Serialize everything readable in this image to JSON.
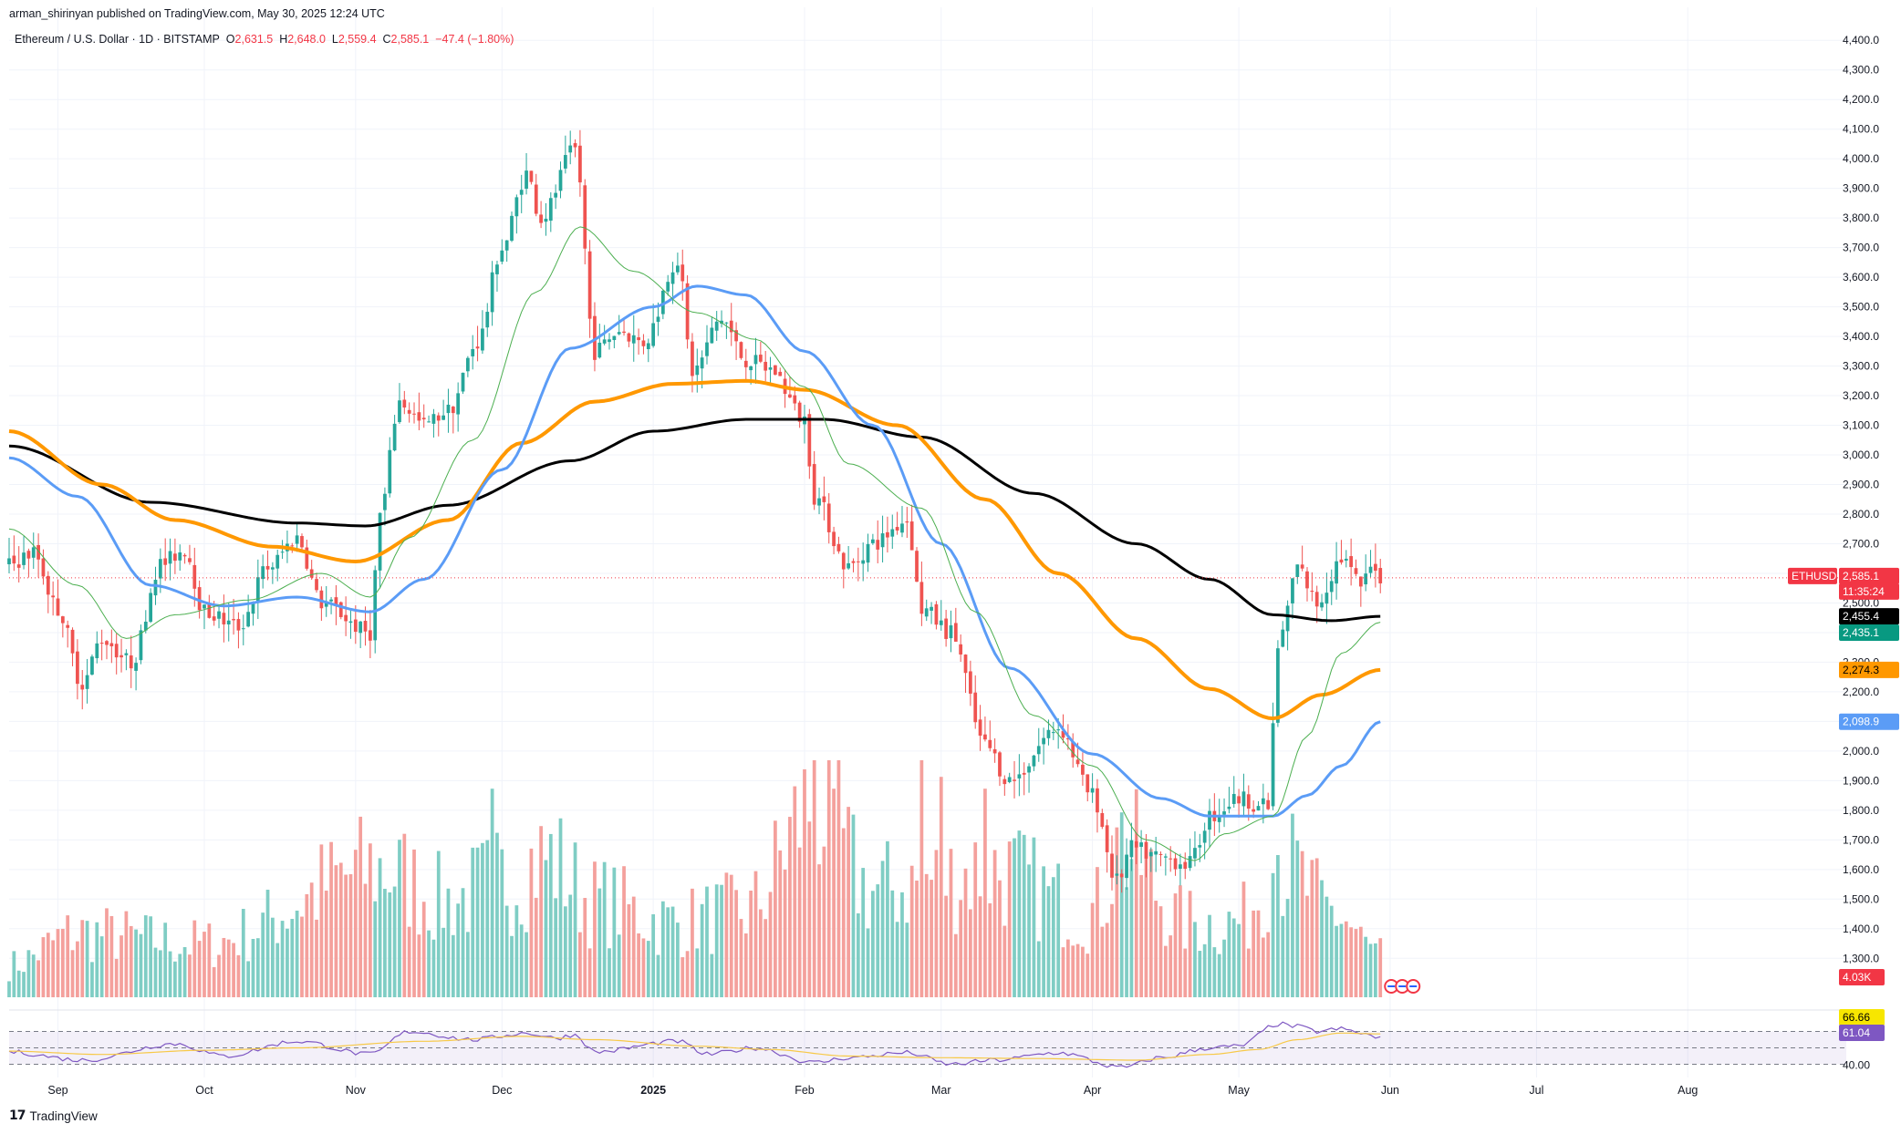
{
  "header": {
    "published": "arman_shirinyan published on TradingView.com, May 30, 2025 12:24 UTC",
    "symbol": "Ethereum / U.S. Dollar · 1D · BITSTAMP",
    "open_label": "O",
    "open": "2,631.5",
    "high_label": "H",
    "high": "2,648.0",
    "low_label": "L",
    "low": "2,559.4",
    "close_label": "C",
    "close": "2,585.1",
    "change": "−47.4 (−1.80%)"
  },
  "footer": {
    "brand_logo": "17",
    "brand": "TradingView"
  },
  "colors": {
    "up": "#26a69a",
    "down": "#ef5350",
    "vol_up": "#7fcdc4",
    "vol_down": "#f4a09c",
    "ma_black": "#000000",
    "ma_orange": "#ff9800",
    "ma_blue": "#5b9cf6",
    "ma_green": "#4caf50",
    "rsi": "#7e57c2",
    "rsi_ma": "#f7c948",
    "price_line": "#f23645"
  },
  "badges": {
    "symbol": "ETHUSD",
    "price": "2,585.1",
    "countdown": "11:35:24",
    "ma_black": "2,455.4",
    "ma_green": "2,435.1",
    "ma_orange": "2,274.3",
    "ma_blue": "2,098.9",
    "volume": "4.03K",
    "rsi_ma": "66.66",
    "rsi": "61.04",
    "rsi_level": "40.00"
  },
  "chart_data": {
    "type": "candlestick",
    "title": "Ethereum / U.S. Dollar · 1D · BITSTAMP",
    "ylim": [
      1150,
      4450
    ],
    "price_ticks": [
      4400,
      4300,
      4200,
      4100,
      4000,
      3900,
      3800,
      3700,
      3600,
      3500,
      3400,
      3300,
      3200,
      3100,
      3000,
      2900,
      2800,
      2700,
      2600,
      2500,
      2400,
      2300,
      2200,
      2100,
      2000,
      1900,
      1800,
      1700,
      1600,
      1500,
      1400,
      1300
    ],
    "price_tick_labels": [
      "4,400.0",
      "4,300.0",
      "4,200.0",
      "4,100.0",
      "4,000.0",
      "3,900.0",
      "3,800.0",
      "3,700.0",
      "3,600.0",
      "3,500.0",
      "3,400.0",
      "3,300.0",
      "3,200.0",
      "3,100.0",
      "3,000.0",
      "2,900.0",
      "2,800.0",
      "2,700.0",
      "2,600.0",
      "2,500.0",
      "2,400.0",
      "2,300.0",
      "2,200.0",
      "2,100.0",
      "2,000.0",
      "1,900.0",
      "1,800.0",
      "1,700.0",
      "1,600.0",
      "1,500.0",
      "1,400.0",
      "1,300.0"
    ],
    "x_start": "2024-08-22",
    "x_end": "2025-08-26",
    "x_ticks": [
      {
        "date": "2024-09-01",
        "label": "Sep"
      },
      {
        "date": "2024-10-01",
        "label": "Oct"
      },
      {
        "date": "2024-11-01",
        "label": "Nov"
      },
      {
        "date": "2024-12-01",
        "label": "Dec"
      },
      {
        "date": "2025-01-01",
        "label": "2025"
      },
      {
        "date": "2025-02-01",
        "label": "Feb"
      },
      {
        "date": "2025-03-01",
        "label": "Mar"
      },
      {
        "date": "2025-04-01",
        "label": "Apr"
      },
      {
        "date": "2025-05-01",
        "label": "May"
      },
      {
        "date": "2025-06-01",
        "label": "Jun"
      },
      {
        "date": "2025-07-01",
        "label": "Jul"
      },
      {
        "date": "2025-08-01",
        "label": "Aug"
      }
    ],
    "price_anchors": [
      [
        "2024-08-22",
        2630
      ],
      [
        "2024-08-27",
        2670
      ],
      [
        "2024-09-01",
        2480
      ],
      [
        "2024-09-06",
        2230
      ],
      [
        "2024-09-10",
        2380
      ],
      [
        "2024-09-16",
        2300
      ],
      [
        "2024-09-22",
        2630
      ],
      [
        "2024-09-27",
        2680
      ],
      [
        "2024-10-01",
        2470
      ],
      [
        "2024-10-08",
        2420
      ],
      [
        "2024-10-14",
        2620
      ],
      [
        "2024-10-20",
        2720
      ],
      [
        "2024-10-25",
        2500
      ],
      [
        "2024-11-04",
        2400
      ],
      [
        "2024-11-06",
        2800
      ],
      [
        "2024-11-10",
        3180
      ],
      [
        "2024-11-15",
        3100
      ],
      [
        "2024-11-20",
        3150
      ],
      [
        "2024-11-26",
        3380
      ],
      [
        "2024-12-01",
        3700
      ],
      [
        "2024-12-06",
        3950
      ],
      [
        "2024-12-09",
        3800
      ],
      [
        "2024-12-16",
        4030
      ],
      [
        "2024-12-20",
        3350
      ],
      [
        "2024-12-25",
        3420
      ],
      [
        "2024-12-30",
        3380
      ],
      [
        "2025-01-06",
        3660
      ],
      [
        "2025-01-09",
        3280
      ],
      [
        "2025-01-15",
        3460
      ],
      [
        "2025-01-20",
        3320
      ],
      [
        "2025-01-25",
        3290
      ],
      [
        "2025-02-01",
        3120
      ],
      [
        "2025-02-03",
        2860
      ],
      [
        "2025-02-10",
        2620
      ],
      [
        "2025-02-15",
        2700
      ],
      [
        "2025-02-22",
        2780
      ],
      [
        "2025-02-25",
        2480
      ],
      [
        "2025-03-03",
        2400
      ],
      [
        "2025-03-10",
        2020
      ],
      [
        "2025-03-15",
        1900
      ],
      [
        "2025-03-25",
        2080
      ],
      [
        "2025-04-01",
        1850
      ],
      [
        "2025-04-06",
        1560
      ],
      [
        "2025-04-09",
        1670
      ],
      [
        "2025-04-15",
        1640
      ],
      [
        "2025-04-21",
        1620
      ],
      [
        "2025-04-25",
        1780
      ],
      [
        "2025-05-01",
        1840
      ],
      [
        "2025-05-07",
        1810
      ],
      [
        "2025-05-09",
        2350
      ],
      [
        "2025-05-13",
        2620
      ],
      [
        "2025-05-17",
        2500
      ],
      [
        "2025-05-22",
        2650
      ],
      [
        "2025-05-26",
        2560
      ],
      [
        "2025-05-29",
        2632
      ],
      [
        "2025-05-30",
        2585
      ]
    ],
    "series": [
      {
        "name": "MA black",
        "anchors": [
          [
            "2024-08-22",
            3030
          ],
          [
            "2024-09-20",
            2840
          ],
          [
            "2024-10-20",
            2770
          ],
          [
            "2024-11-03",
            2760
          ],
          [
            "2024-11-20",
            2830
          ],
          [
            "2024-12-15",
            2980
          ],
          [
            "2025-01-01",
            3080
          ],
          [
            "2025-01-20",
            3120
          ],
          [
            "2025-02-05",
            3120
          ],
          [
            "2025-02-25",
            3060
          ],
          [
            "2025-03-20",
            2870
          ],
          [
            "2025-04-10",
            2700
          ],
          [
            "2025-04-25",
            2580
          ],
          [
            "2025-05-08",
            2460
          ],
          [
            "2025-05-20",
            2440
          ],
          [
            "2025-05-30",
            2455
          ]
        ]
      },
      {
        "name": "MA orange",
        "anchors": [
          [
            "2024-08-22",
            3080
          ],
          [
            "2024-09-10",
            2900
          ],
          [
            "2024-09-25",
            2780
          ],
          [
            "2024-10-15",
            2690
          ],
          [
            "2024-11-01",
            2640
          ],
          [
            "2024-11-20",
            2780
          ],
          [
            "2024-12-05",
            3040
          ],
          [
            "2024-12-20",
            3180
          ],
          [
            "2025-01-05",
            3240
          ],
          [
            "2025-01-20",
            3250
          ],
          [
            "2025-02-01",
            3220
          ],
          [
            "2025-02-20",
            3100
          ],
          [
            "2025-03-10",
            2850
          ],
          [
            "2025-03-25",
            2600
          ],
          [
            "2025-04-10",
            2380
          ],
          [
            "2025-04-25",
            2210
          ],
          [
            "2025-05-08",
            2110
          ],
          [
            "2025-05-18",
            2190
          ],
          [
            "2025-05-30",
            2274
          ]
        ]
      },
      {
        "name": "MA blue",
        "anchors": [
          [
            "2024-08-22",
            2990
          ],
          [
            "2024-09-05",
            2860
          ],
          [
            "2024-09-20",
            2560
          ],
          [
            "2024-10-05",
            2490
          ],
          [
            "2024-10-20",
            2520
          ],
          [
            "2024-11-04",
            2470
          ],
          [
            "2024-11-15",
            2580
          ],
          [
            "2024-12-01",
            2950
          ],
          [
            "2024-12-15",
            3360
          ],
          [
            "2025-01-01",
            3500
          ],
          [
            "2025-01-10",
            3570
          ],
          [
            "2025-01-20",
            3540
          ],
          [
            "2025-02-01",
            3350
          ],
          [
            "2025-02-15",
            3100
          ],
          [
            "2025-03-01",
            2700
          ],
          [
            "2025-03-15",
            2280
          ],
          [
            "2025-04-01",
            1990
          ],
          [
            "2025-04-15",
            1840
          ],
          [
            "2025-04-25",
            1780
          ],
          [
            "2025-05-08",
            1780
          ],
          [
            "2025-05-15",
            1850
          ],
          [
            "2025-05-22",
            1950
          ],
          [
            "2025-05-30",
            2099
          ]
        ]
      },
      {
        "name": "MA green",
        "anchors": [
          [
            "2024-08-22",
            2750
          ],
          [
            "2024-09-05",
            2560
          ],
          [
            "2024-09-15",
            2380
          ],
          [
            "2024-09-25",
            2460
          ],
          [
            "2024-10-10",
            2510
          ],
          [
            "2024-10-25",
            2600
          ],
          [
            "2024-11-04",
            2520
          ],
          [
            "2024-11-12",
            2720
          ],
          [
            "2024-11-25",
            3050
          ],
          [
            "2024-12-08",
            3550
          ],
          [
            "2024-12-17",
            3770
          ],
          [
            "2024-12-28",
            3620
          ],
          [
            "2025-01-10",
            3480
          ],
          [
            "2025-01-22",
            3390
          ],
          [
            "2025-02-01",
            3230
          ],
          [
            "2025-02-10",
            2970
          ],
          [
            "2025-02-25",
            2820
          ],
          [
            "2025-03-08",
            2470
          ],
          [
            "2025-03-20",
            2120
          ],
          [
            "2025-04-01",
            1950
          ],
          [
            "2025-04-12",
            1700
          ],
          [
            "2025-04-22",
            1630
          ],
          [
            "2025-04-28",
            1720
          ],
          [
            "2025-05-08",
            1780
          ],
          [
            "2025-05-15",
            2050
          ],
          [
            "2025-05-22",
            2330
          ],
          [
            "2025-05-30",
            2435
          ]
        ]
      }
    ],
    "volume_anchors": [
      [
        "2024-08-22",
        0.15
      ],
      [
        "2024-09-05",
        0.3
      ],
      [
        "2024-10-01",
        0.25
      ],
      [
        "2024-11-06",
        0.6
      ],
      [
        "2024-11-20",
        0.45
      ],
      [
        "2024-12-01",
        0.55
      ],
      [
        "2024-12-10",
        0.65
      ],
      [
        "2024-12-20",
        0.45
      ],
      [
        "2025-01-05",
        0.35
      ],
      [
        "2025-01-20",
        0.4
      ],
      [
        "2025-02-03",
        0.9
      ],
      [
        "2025-02-15",
        0.5
      ],
      [
        "2025-03-01",
        0.55
      ],
      [
        "2025-03-10",
        0.6
      ],
      [
        "2025-04-01",
        0.4
      ],
      [
        "2025-04-07",
        0.7
      ],
      [
        "2025-04-20",
        0.35
      ],
      [
        "2025-05-01",
        0.35
      ],
      [
        "2025-05-09",
        0.65
      ],
      [
        "2025-05-20",
        0.4
      ],
      [
        "2025-05-30",
        0.2
      ]
    ],
    "volume_spikes": [
      [
        "2024-11-29",
        0.88
      ],
      [
        "2025-02-03",
        1.0
      ],
      [
        "2025-02-07",
        0.88
      ],
      [
        "2025-02-25",
        1.0
      ],
      [
        "2025-03-01",
        0.93
      ],
      [
        "2025-03-10",
        0.88
      ],
      [
        "2025-04-07",
        0.78
      ],
      [
        "2025-05-09",
        0.6
      ]
    ],
    "rsi_ylim": [
      25,
      85
    ],
    "rsi_levels": [
      70,
      50,
      30
    ],
    "rsi_anchors": [
      [
        "2024-08-22",
        45
      ],
      [
        "2024-09-06",
        35
      ],
      [
        "2024-09-25",
        55
      ],
      [
        "2024-10-05",
        40
      ],
      [
        "2024-10-20",
        58
      ],
      [
        "2024-11-04",
        42
      ],
      [
        "2024-11-12",
        70
      ],
      [
        "2024-11-25",
        60
      ],
      [
        "2024-12-06",
        68
      ],
      [
        "2024-12-12",
        62
      ],
      [
        "2024-12-16",
        66
      ],
      [
        "2024-12-20",
        45
      ],
      [
        "2025-01-06",
        58
      ],
      [
        "2025-01-12",
        42
      ],
      [
        "2025-01-22",
        50
      ],
      [
        "2025-02-03",
        32
      ],
      [
        "2025-02-10",
        38
      ],
      [
        "2025-02-22",
        44
      ],
      [
        "2025-03-03",
        30
      ],
      [
        "2025-03-12",
        35
      ],
      [
        "2025-03-25",
        44
      ],
      [
        "2025-04-07",
        26
      ],
      [
        "2025-04-15",
        38
      ],
      [
        "2025-04-25",
        50
      ],
      [
        "2025-05-01",
        52
      ],
      [
        "2025-05-09",
        79
      ],
      [
        "2025-05-13",
        76
      ],
      [
        "2025-05-17",
        70
      ],
      [
        "2025-05-22",
        73
      ],
      [
        "2025-05-26",
        68
      ],
      [
        "2025-05-30",
        61
      ]
    ],
    "rsi_ma_anchors": [
      [
        "2024-08-22",
        46
      ],
      [
        "2024-09-10",
        42
      ],
      [
        "2024-10-01",
        47
      ],
      [
        "2024-10-20",
        50
      ],
      [
        "2024-11-15",
        58
      ],
      [
        "2024-12-05",
        64
      ],
      [
        "2024-12-20",
        60
      ],
      [
        "2025-01-10",
        52
      ],
      [
        "2025-01-25",
        48
      ],
      [
        "2025-02-10",
        40
      ],
      [
        "2025-03-01",
        38
      ],
      [
        "2025-03-20",
        37
      ],
      [
        "2025-04-10",
        35
      ],
      [
        "2025-04-25",
        42
      ],
      [
        "2025-05-05",
        48
      ],
      [
        "2025-05-13",
        60
      ],
      [
        "2025-05-22",
        68
      ],
      [
        "2025-05-30",
        67
      ]
    ]
  }
}
